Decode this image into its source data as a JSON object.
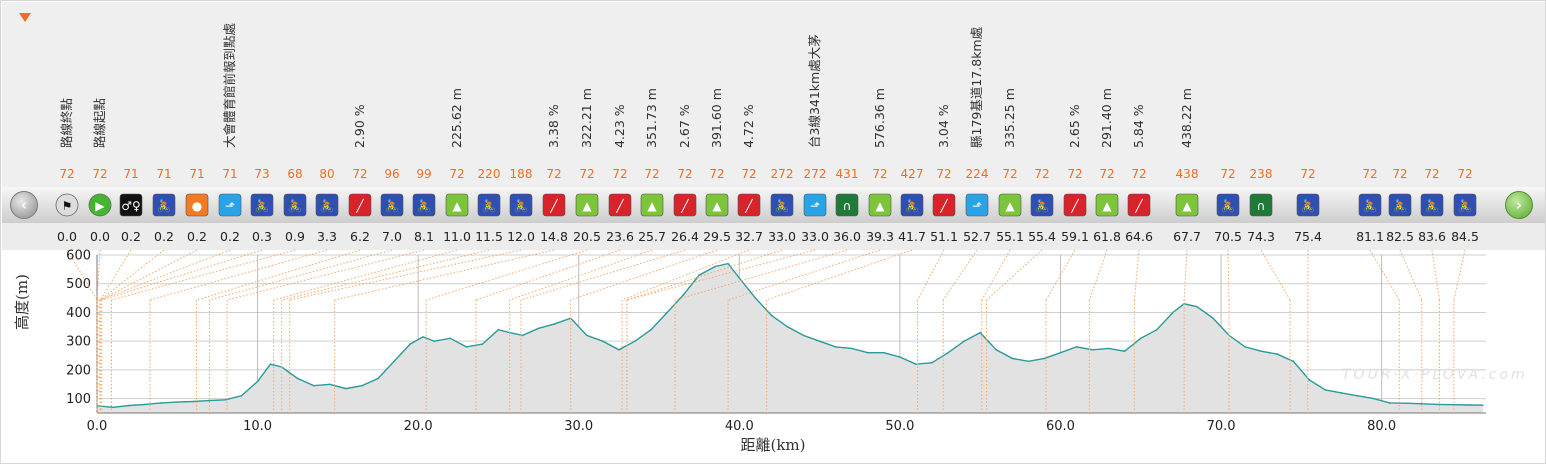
{
  "chart_data": {
    "type": "area",
    "xlabel": "距離(km)",
    "ylabel": "高度(m)",
    "xlim": [
      0,
      86.5
    ],
    "ylim": [
      50,
      600
    ],
    "x_ticks": [
      "0.0",
      "10.0",
      "20.0",
      "30.0",
      "40.0",
      "50.0",
      "60.0",
      "70.0",
      "80.0"
    ],
    "y_ticks": [
      "100",
      "200",
      "300",
      "400",
      "500",
      "600"
    ],
    "grid": true,
    "series": [
      {
        "x": [
          0,
          1,
          2,
          3,
          4,
          5,
          6,
          7,
          8,
          9,
          10,
          10.8,
          11.5,
          12.5,
          13.5,
          14.5,
          15.5,
          16.5,
          17.5,
          18.5,
          19.5,
          20.3,
          21,
          22,
          23,
          24,
          25,
          25.7,
          26.5,
          27.5,
          28.5,
          29.5,
          30.5,
          31.5,
          32.5,
          33.5,
          34.5,
          35.5,
          36.5,
          37.5,
          38.5,
          39.3,
          40,
          41,
          42,
          43,
          44,
          45,
          46,
          47,
          48,
          49,
          50,
          51,
          52,
          53,
          54,
          55,
          56,
          57,
          58,
          59,
          60,
          61,
          62,
          63,
          64,
          65,
          66,
          67,
          67.7,
          68.5,
          69.5,
          70.5,
          71.5,
          72.5,
          73.5,
          74.5,
          75.5,
          76.5,
          77.5,
          78.5,
          79.5,
          80.5,
          81.5,
          82.5,
          83.5,
          84.5,
          85.5,
          86.3
        ],
        "y": [
          75,
          70,
          76,
          80,
          85,
          88,
          90,
          93,
          96,
          110,
          160,
          220,
          210,
          170,
          145,
          150,
          135,
          145,
          170,
          230,
          290,
          315,
          300,
          310,
          280,
          290,
          340,
          330,
          320,
          345,
          360,
          380,
          320,
          300,
          270,
          300,
          340,
          400,
          460,
          530,
          560,
          570,
          520,
          450,
          390,
          350,
          320,
          300,
          280,
          275,
          260,
          260,
          245,
          220,
          225,
          260,
          300,
          330,
          270,
          240,
          230,
          240,
          260,
          280,
          270,
          275,
          265,
          310,
          340,
          400,
          430,
          420,
          380,
          320,
          280,
          265,
          255,
          230,
          165,
          130,
          120,
          110,
          100,
          85,
          84,
          82,
          80,
          79,
          78,
          77
        ]
      }
    ]
  },
  "poi": {
    "labels": [
      "路線終點",
      "路線起點",
      "大會體育館前報到點處",
      "2.90 %",
      "225.62 m",
      "3.38 %",
      "322.21 m",
      "4.23 %",
      "351.73 m",
      "2.67 %",
      "391.60 m",
      "4.72 %",
      "台3線341km處大茅",
      "576.36 m",
      "3.04 %",
      "縣179基道17.8km處",
      "335.25 m",
      "2.65 %",
      "291.40 m",
      "5.84 %",
      "438.22 m"
    ],
    "elevations": [
      "72",
      "72",
      "71",
      "71",
      "71",
      "71",
      "73",
      "68",
      "80",
      "72",
      "96",
      "99",
      "72",
      "220",
      "188",
      "72",
      "72",
      "72",
      "72",
      "72",
      "72",
      "72",
      "272",
      "272",
      "431",
      "72",
      "427",
      "72",
      "224",
      "72",
      "72",
      "72",
      "72",
      "72",
      "438",
      "72",
      "238",
      "72",
      "72",
      "72",
      "72",
      "72"
    ],
    "kms": [
      "0.0",
      "0.0",
      "0.2",
      "0.2",
      "0.2",
      "0.2",
      "0.3",
      "0.9",
      "3.3",
      "6.2",
      "7.0",
      "8.1",
      "11.0",
      "11.5",
      "12.0",
      "14.8",
      "20.5",
      "23.6",
      "25.7",
      "26.4",
      "29.5",
      "32.7",
      "33.0",
      "33.0",
      "36.0",
      "39.3",
      "41.7",
      "51.1",
      "52.7",
      "55.1",
      "55.4",
      "59.1",
      "61.8",
      "64.6",
      "67.7",
      "70.5",
      "74.3",
      "75.4",
      "81.1",
      "82.5",
      "83.6",
      "84.5"
    ],
    "icons": [
      "finish-flag",
      "start",
      "restroom",
      "cyclist",
      "food",
      "water-tap",
      "cyclist",
      "cyclist",
      "cyclist",
      "climb",
      "cyclist",
      "cyclist",
      "summit",
      "cyclist",
      "cyclist",
      "climb",
      "summit",
      "climb",
      "summit",
      "climb",
      "summit",
      "climb",
      "cyclist",
      "water-tap",
      "tunnel",
      "summit",
      "cyclist",
      "climb",
      "water-tap",
      "summit",
      "cyclist",
      "climb",
      "summit",
      "climb",
      "summit",
      "cyclist",
      "tunnel",
      "cyclist",
      "cyclist",
      "cyclist",
      "cyclist",
      "cyclist"
    ]
  },
  "watermark": "TOUR·X·PLOVA.com",
  "colors": {
    "profile_line": "#2a9a9a",
    "profile_fill": "#e2e2e2",
    "guide_line": "#f5a66a",
    "elevation_text": "#f26d21",
    "grid": "#cfcfcf"
  }
}
